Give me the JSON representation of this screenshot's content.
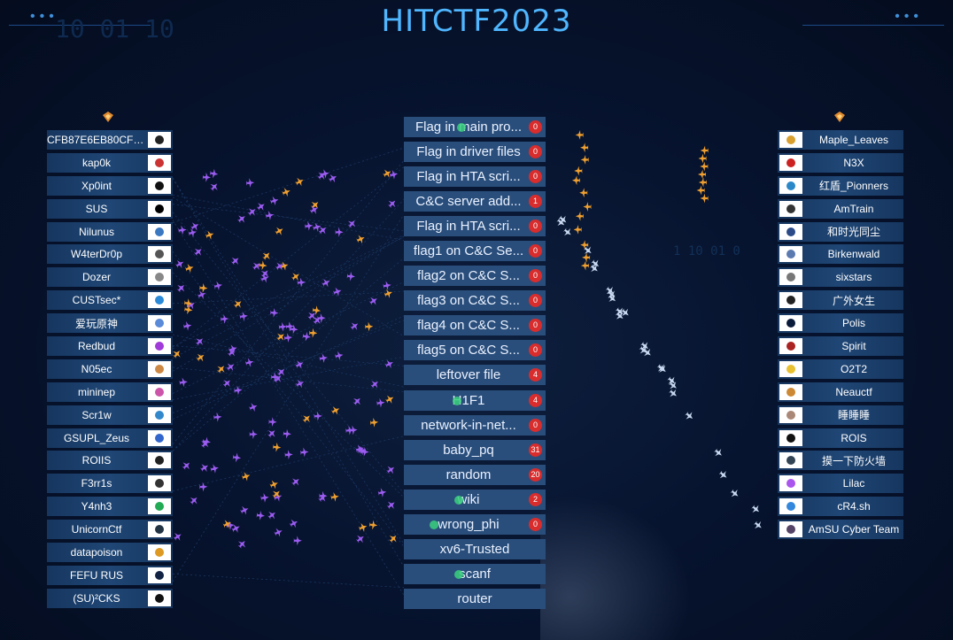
{
  "header": {
    "title": "HITCTF2023",
    "deco_left": "•••",
    "deco_right": "•••",
    "bg_digits": "10 01 10",
    "bg_digits2": "1 10 01 0"
  },
  "colors": {
    "title": "#4fb6ff",
    "bar": "#1f4675",
    "challenge": "#2a4e7b",
    "badge": "#d92c2c",
    "plane_purple": "#9b5cf0",
    "plane_orange": "#f0a030",
    "plane_white": "#c8d8f0"
  },
  "icons": {
    "left_column": "rank-badge-icon",
    "right_column": "rank-badge-icon"
  },
  "left_teams": [
    {
      "name": "CFB87E6EB80CFB...",
      "logo": "#222"
    },
    {
      "name": "kap0k",
      "logo": "#c33"
    },
    {
      "name": "Xp0int",
      "logo": "#111"
    },
    {
      "name": "SUS",
      "logo": "#000"
    },
    {
      "name": "Nilunus",
      "logo": "#3a78c2"
    },
    {
      "name": "W4terDr0p",
      "logo": "#555"
    },
    {
      "name": "Dozer",
      "logo": "#888"
    },
    {
      "name": "CUSTsec*",
      "logo": "#2a8ad8"
    },
    {
      "name": "爱玩原神",
      "logo": "#5a8ad8"
    },
    {
      "name": "Redbud",
      "logo": "#a03ad8"
    },
    {
      "name": "N05ec",
      "logo": "#c84"
    },
    {
      "name": "mininep",
      "logo": "#c5a"
    },
    {
      "name": "Scr1w",
      "logo": "#38c"
    },
    {
      "name": "GSUPL_Zeus",
      "logo": "#36c"
    },
    {
      "name": "ROIIS",
      "logo": "#222"
    },
    {
      "name": "F3rr1s",
      "logo": "#333"
    },
    {
      "name": "Y4nh3",
      "logo": "#2a5"
    },
    {
      "name": "UnicornCtf",
      "logo": "#234"
    },
    {
      "name": "datapoison",
      "logo": "#d92"
    },
    {
      "name": "FEFU RUS",
      "logo": "#124"
    },
    {
      "name": "(SU)²CKS",
      "logo": "#111"
    }
  ],
  "right_teams": [
    {
      "name": "Maple_Leaves",
      "logo": "#d9a030"
    },
    {
      "name": "N3X",
      "logo": "#c22"
    },
    {
      "name": "红盾_Pionners",
      "logo": "#2a88c8"
    },
    {
      "name": "AmTrain",
      "logo": "#333"
    },
    {
      "name": "和时光同尘",
      "logo": "#2a4a88"
    },
    {
      "name": "Birkenwald",
      "logo": "#5a7ab0"
    },
    {
      "name": "sixstars",
      "logo": "#777"
    },
    {
      "name": "广外女生",
      "logo": "#222"
    },
    {
      "name": "Polis",
      "logo": "#0a1a3a"
    },
    {
      "name": "Spirit",
      "logo": "#a22"
    },
    {
      "name": "O2T2",
      "logo": "#e8c030"
    },
    {
      "name": "Neauctf",
      "logo": "#c83"
    },
    {
      "name": "睡睡睡",
      "logo": "#a87"
    },
    {
      "name": "ROIS",
      "logo": "#111"
    },
    {
      "name": "摸一下防火墙",
      "logo": "#345"
    },
    {
      "name": "Lilac",
      "logo": "#a5e"
    },
    {
      "name": "cR4.sh",
      "logo": "#38d"
    },
    {
      "name": "AmSU Cyber Team",
      "logo": "#546"
    }
  ],
  "challenges": [
    {
      "name": "Flag in main pro...",
      "count": "0"
    },
    {
      "name": "Flag in driver files",
      "count": "0"
    },
    {
      "name": "Flag in HTA scri...",
      "count": "0"
    },
    {
      "name": "C&C server add...",
      "count": "1"
    },
    {
      "name": "Flag in HTA scri...",
      "count": "0"
    },
    {
      "name": "flag1 on C&C Se...",
      "count": "0"
    },
    {
      "name": "flag2 on C&C S...",
      "count": "0"
    },
    {
      "name": "flag3 on C&C S...",
      "count": "0"
    },
    {
      "name": "flag4 on C&C S...",
      "count": "0"
    },
    {
      "name": "flag5 on C&C S...",
      "count": "0"
    },
    {
      "name": "leftover file",
      "count": "4"
    },
    {
      "name": "H1F1",
      "count": "4"
    },
    {
      "name": "network-in-net...",
      "count": "0"
    },
    {
      "name": "baby_pq",
      "count": "31"
    },
    {
      "name": "random",
      "count": "20"
    },
    {
      "name": "wiki",
      "count": "2"
    },
    {
      "name": "wrong_phi",
      "count": "0"
    },
    {
      "name": "xv6-Trusted",
      "count": ""
    },
    {
      "name": "scanf",
      "count": ""
    },
    {
      "name": "router",
      "count": ""
    }
  ]
}
